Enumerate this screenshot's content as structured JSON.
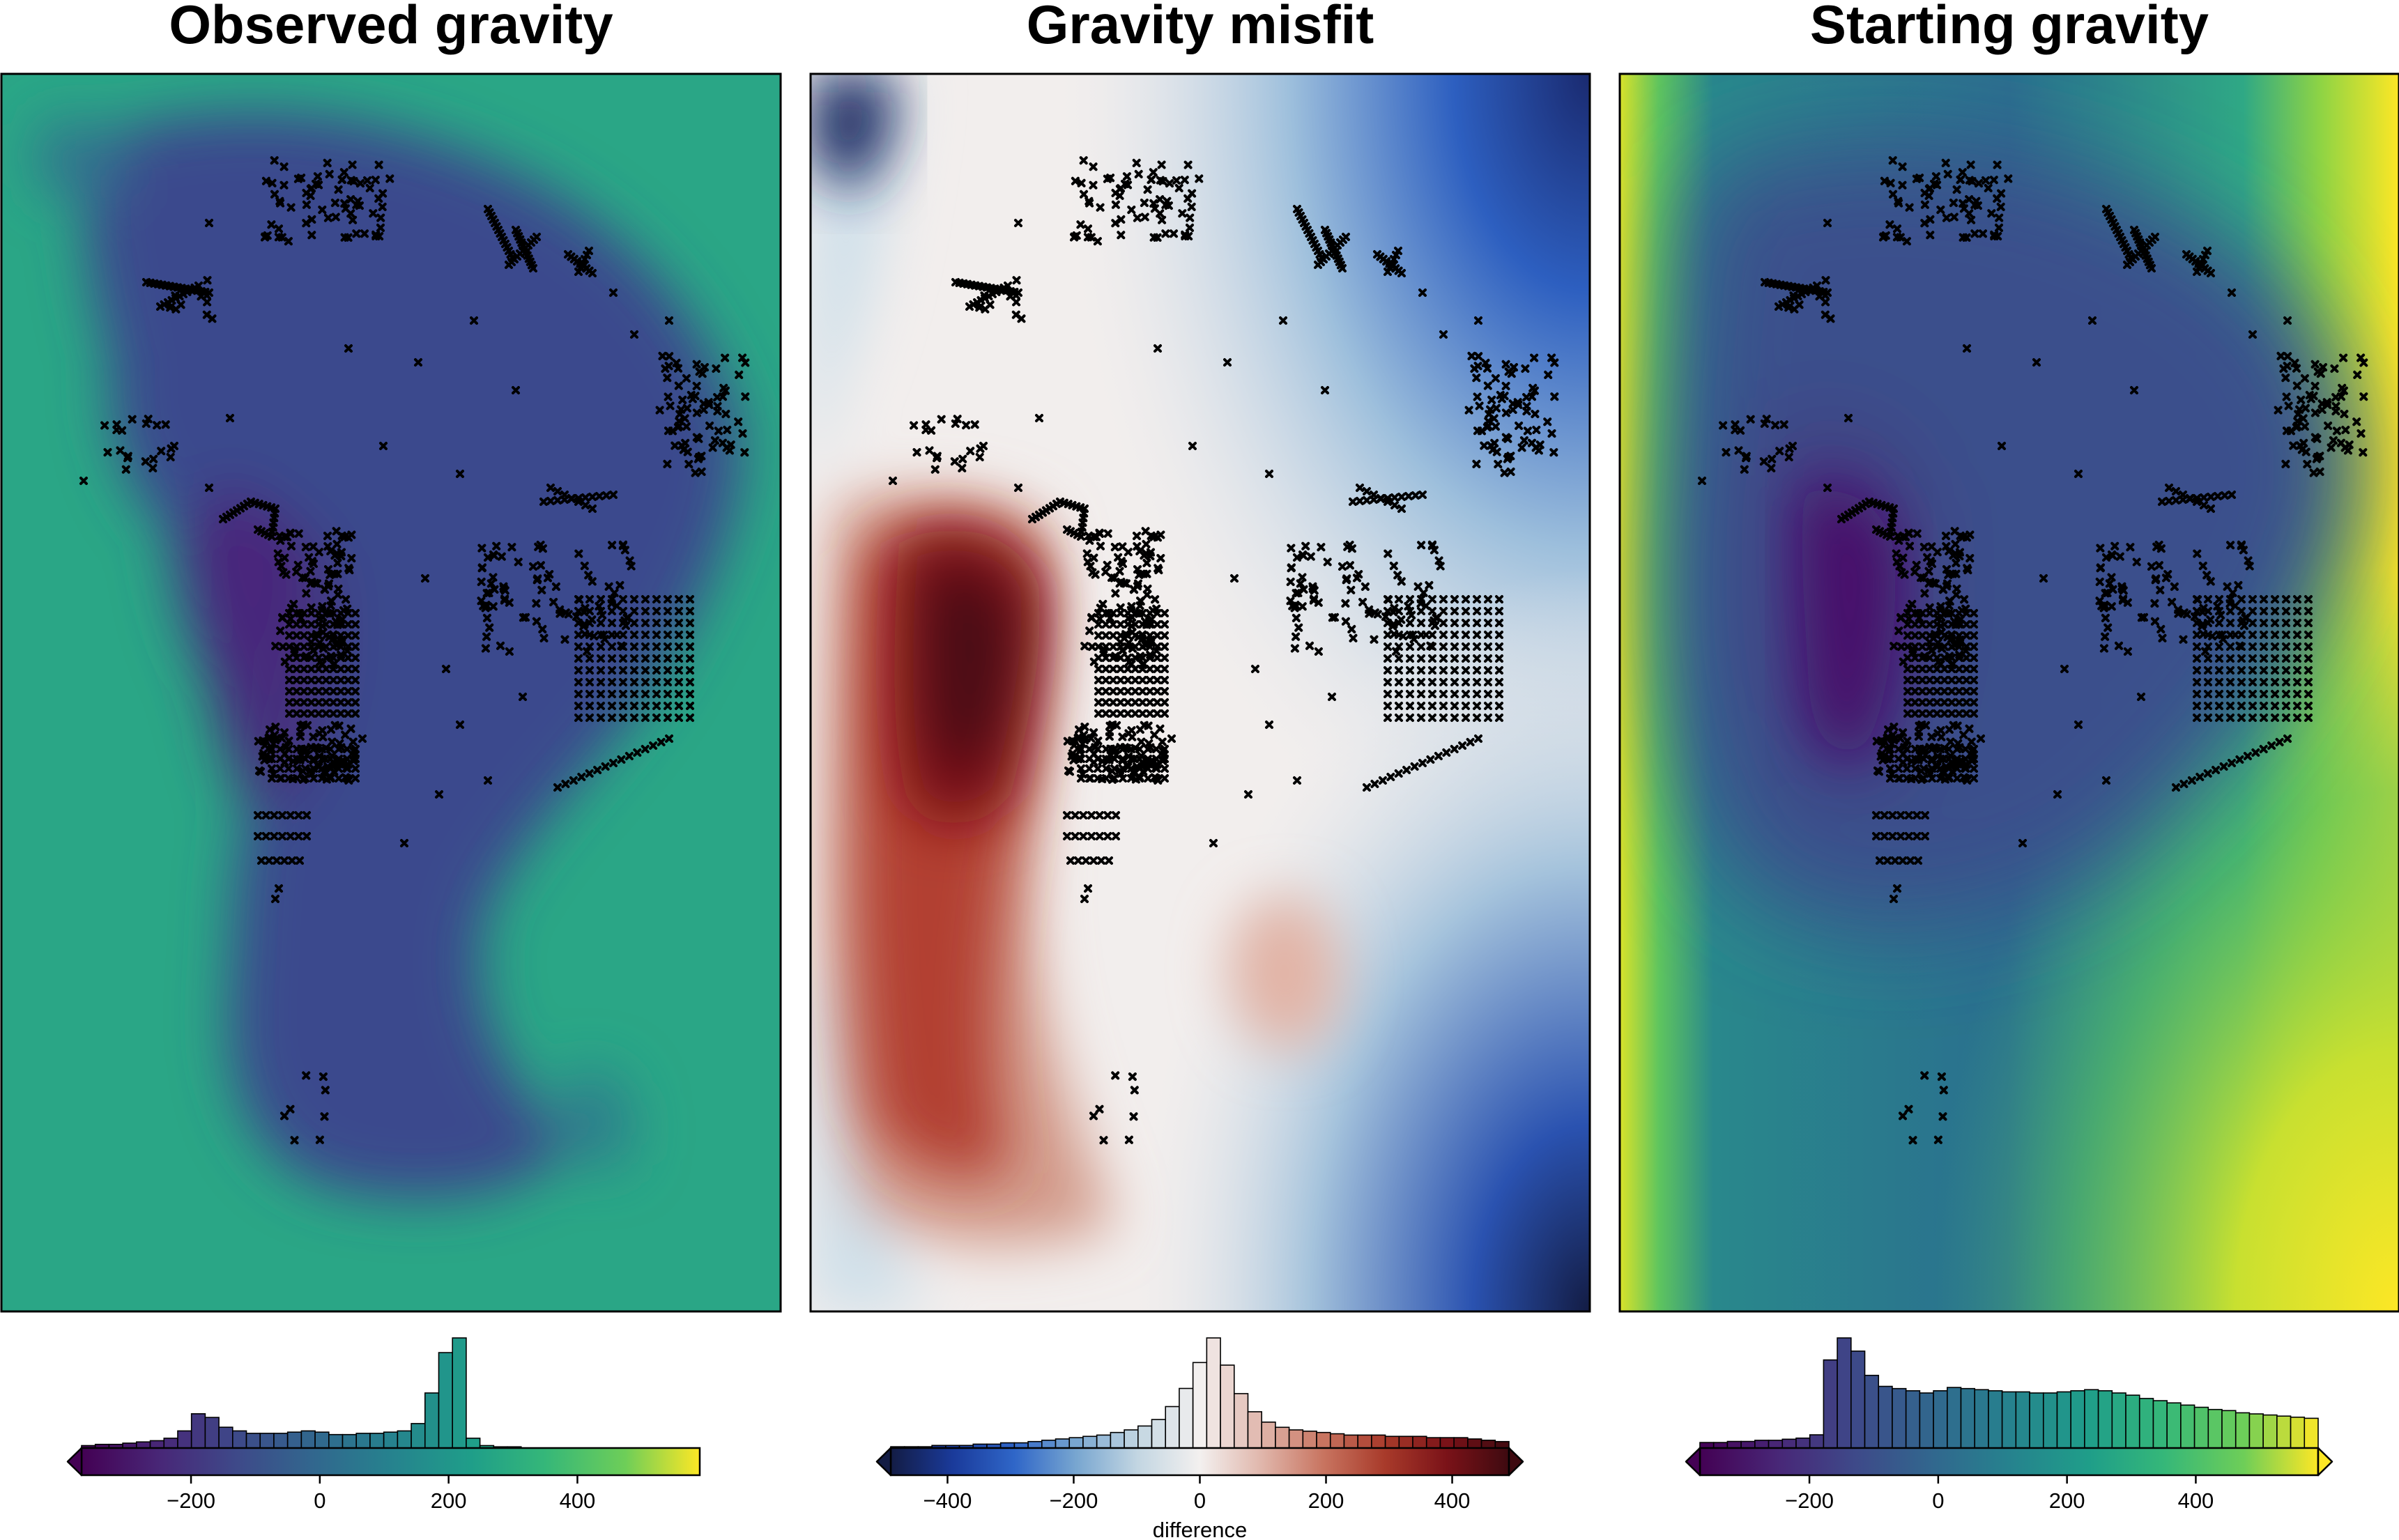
{
  "chart_data": [
    {
      "type": "heatmap",
      "title": "Observed gravity",
      "colormap": "viridis",
      "colorbar": {
        "range": [
          -370,
          590
        ],
        "ticks": [
          -200,
          0,
          200,
          400
        ],
        "label": "",
        "triangles": "left",
        "histogram": [
          2,
          3,
          3,
          4,
          5,
          6,
          8,
          14,
          28,
          25,
          17,
          14,
          12,
          12,
          12,
          13,
          14,
          13,
          11,
          11,
          12,
          12,
          13,
          14,
          20,
          45,
          78,
          90,
          8,
          2,
          1,
          1,
          0,
          0,
          0,
          0,
          0,
          0,
          0,
          0,
          0,
          0,
          0,
          0,
          0
        ]
      }
    },
    {
      "type": "heatmap",
      "title": "Gravity misfit",
      "colormap": "diverging blue-white-red",
      "colorbar": {
        "range": [
          -490,
          490
        ],
        "ticks": [
          -400,
          -200,
          0,
          200,
          400
        ],
        "label": "difference",
        "triangles": "both",
        "histogram": [
          1,
          1,
          1,
          2,
          2,
          2,
          3,
          3,
          4,
          4,
          5,
          6,
          7,
          8,
          9,
          10,
          12,
          14,
          17,
          22,
          32,
          46,
          66,
          85,
          64,
          42,
          28,
          20,
          16,
          14,
          13,
          12,
          11,
          10,
          10,
          10,
          9,
          9,
          9,
          8,
          8,
          8,
          7,
          6,
          5
        ]
      }
    },
    {
      "type": "heatmap",
      "title": "Starting gravity",
      "colormap": "viridis",
      "colorbar": {
        "range": [
          -370,
          590
        ],
        "ticks": [
          -200,
          0,
          200,
          400
        ],
        "label": "",
        "triangles": "both",
        "histogram": [
          5,
          5,
          6,
          6,
          7,
          7,
          8,
          9,
          12,
          80,
          100,
          88,
          66,
          56,
          54,
          52,
          50,
          52,
          55,
          54,
          53,
          52,
          51,
          51,
          50,
          50,
          51,
          52,
          53,
          52,
          50,
          48,
          45,
          43,
          41,
          39,
          37,
          35,
          34,
          32,
          31,
          30,
          29,
          28,
          27
        ]
      }
    }
  ]
}
